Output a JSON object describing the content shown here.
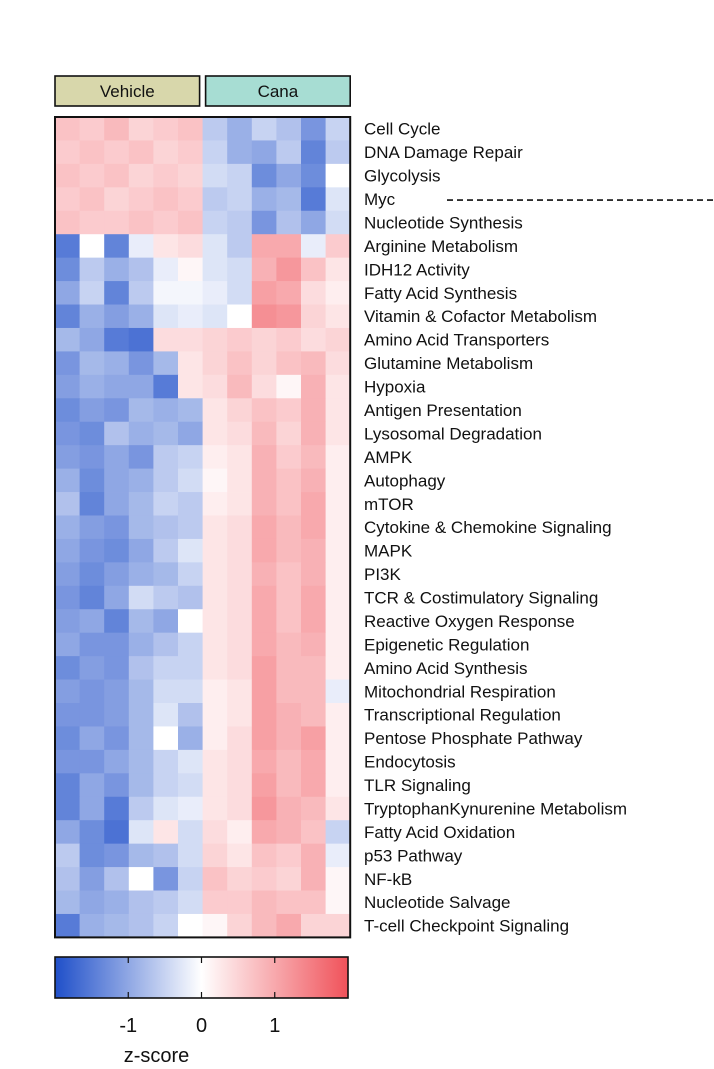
{
  "chart_data": {
    "type": "heatmap",
    "groups": [
      {
        "label": "Vehicle",
        "columns": 6,
        "color": "#d8d7ab"
      },
      {
        "label": "Cana",
        "columns": 6,
        "color": "#a7ddd3"
      }
    ],
    "rows": [
      "Cell Cycle",
      "DNA Damage Repair",
      "Glycolysis",
      "Myc",
      "Nucleotide Synthesis",
      "Arginine Metabolism",
      "IDH12 Activity",
      "Fatty Acid Synthesis",
      "Vitamin & Cofactor Metabolism",
      "Amino Acid Transporters",
      "Glutamine Metabolism",
      "Hypoxia",
      "Antigen Presentation",
      "Lysosomal Degradation",
      "AMPK",
      "Autophagy",
      "mTOR",
      "Cytokine & Chemokine Signaling",
      "MAPK",
      "PI3K",
      "TCR & Costimulatory Signaling",
      "Reactive Oxygen Response",
      "Epigenetic Regulation",
      "Amino Acid Synthesis",
      "Mitochondrial Respiration",
      "Transcriptional Regulation",
      "Pentose Phosphate Pathway",
      "Endocytosis",
      "TLR Signaling",
      "TryptophanKynurenine Metabolism",
      "Fatty Acid Oxidation",
      "p53 Pathway",
      "NF-kB",
      "Nucleotide Salvage",
      "T-cell Checkpoint Signaling"
    ],
    "values": [
      [
        0.7,
        0.6,
        0.8,
        0.5,
        0.6,
        0.7,
        -0.6,
        -0.9,
        -0.5,
        -0.7,
        -1.2,
        -0.5
      ],
      [
        0.6,
        0.7,
        0.6,
        0.7,
        0.5,
        0.6,
        -0.5,
        -0.9,
        -1.0,
        -0.6,
        -1.4,
        -0.6
      ],
      [
        0.7,
        0.6,
        0.7,
        0.5,
        0.6,
        0.5,
        -0.4,
        -0.5,
        -1.3,
        -1.0,
        -1.3,
        0.0
      ],
      [
        0.6,
        0.7,
        0.5,
        0.6,
        0.7,
        0.6,
        -0.6,
        -0.5,
        -0.9,
        -0.8,
        -1.5,
        -0.3
      ],
      [
        0.7,
        0.6,
        0.6,
        0.7,
        0.6,
        0.7,
        -0.5,
        -0.6,
        -1.2,
        -0.7,
        -1.0,
        -0.4
      ],
      [
        -1.5,
        0.0,
        -1.4,
        -0.2,
        0.3,
        0.4,
        -0.3,
        -0.6,
        1.0,
        1.0,
        -0.2,
        0.6
      ],
      [
        -1.3,
        -0.6,
        -0.9,
        -0.7,
        -0.2,
        0.1,
        -0.3,
        -0.4,
        0.9,
        1.2,
        0.7,
        0.3
      ],
      [
        -1.0,
        -0.5,
        -1.4,
        -0.6,
        -0.1,
        -0.1,
        -0.2,
        -0.4,
        1.1,
        1.0,
        0.4,
        0.2
      ],
      [
        -1.4,
        -0.9,
        -1.1,
        -0.9,
        -0.3,
        -0.2,
        -0.3,
        0.0,
        1.3,
        1.2,
        0.5,
        0.3
      ],
      [
        -0.8,
        -1.0,
        -1.5,
        -1.6,
        0.4,
        0.4,
        0.5,
        0.6,
        0.5,
        0.6,
        0.4,
        0.5
      ],
      [
        -1.2,
        -0.8,
        -0.9,
        -1.2,
        -0.8,
        0.3,
        0.5,
        0.7,
        0.5,
        0.7,
        0.8,
        0.4
      ],
      [
        -1.1,
        -0.9,
        -1.0,
        -1.0,
        -1.5,
        0.3,
        0.4,
        0.8,
        0.4,
        0.1,
        0.9,
        0.3
      ],
      [
        -1.3,
        -1.1,
        -1.2,
        -0.8,
        -0.9,
        -0.8,
        0.3,
        0.5,
        0.7,
        0.6,
        0.9,
        0.3
      ],
      [
        -1.2,
        -1.3,
        -0.7,
        -0.9,
        -0.8,
        -1.0,
        0.3,
        0.4,
        0.8,
        0.5,
        0.9,
        0.3
      ],
      [
        -1.1,
        -1.2,
        -1.0,
        -1.2,
        -0.6,
        -0.5,
        0.2,
        0.3,
        0.9,
        0.6,
        0.8,
        0.2
      ],
      [
        -0.9,
        -1.3,
        -1.0,
        -0.9,
        -0.6,
        -0.4,
        0.1,
        0.3,
        0.9,
        0.7,
        0.9,
        0.2
      ],
      [
        -0.7,
        -1.4,
        -1.0,
        -0.8,
        -0.5,
        -0.6,
        0.2,
        0.3,
        0.9,
        0.7,
        1.0,
        0.2
      ],
      [
        -0.9,
        -1.1,
        -1.2,
        -0.8,
        -0.7,
        -0.6,
        0.3,
        0.4,
        1.0,
        0.8,
        1.0,
        0.2
      ],
      [
        -1.0,
        -1.2,
        -1.3,
        -1.0,
        -0.6,
        -0.3,
        0.3,
        0.4,
        1.0,
        0.8,
        0.9,
        0.2
      ],
      [
        -1.1,
        -1.3,
        -1.1,
        -0.9,
        -0.8,
        -0.5,
        0.3,
        0.4,
        0.9,
        0.7,
        0.9,
        0.2
      ],
      [
        -1.2,
        -1.4,
        -1.0,
        -0.4,
        -0.6,
        -0.7,
        0.3,
        0.4,
        1.0,
        0.7,
        1.0,
        0.2
      ],
      [
        -1.1,
        -1.0,
        -1.4,
        -0.8,
        -1.0,
        0.0,
        0.3,
        0.4,
        1.0,
        0.7,
        1.0,
        0.2
      ],
      [
        -1.0,
        -1.2,
        -1.2,
        -0.9,
        -0.7,
        -0.5,
        0.3,
        0.4,
        1.0,
        0.8,
        0.9,
        0.2
      ],
      [
        -1.3,
        -1.1,
        -1.2,
        -0.7,
        -0.5,
        -0.5,
        0.3,
        0.4,
        1.1,
        0.8,
        0.8,
        0.2
      ],
      [
        -1.1,
        -1.2,
        -1.1,
        -0.8,
        -0.4,
        -0.4,
        0.2,
        0.3,
        1.1,
        0.8,
        0.8,
        -0.2
      ],
      [
        -1.2,
        -1.2,
        -1.1,
        -0.8,
        -0.3,
        -0.7,
        0.2,
        0.3,
        1.1,
        0.9,
        0.8,
        0.2
      ],
      [
        -1.3,
        -1.0,
        -1.2,
        -0.8,
        0.0,
        -0.9,
        0.2,
        0.4,
        1.1,
        0.9,
        1.1,
        0.2
      ],
      [
        -1.2,
        -1.2,
        -1.0,
        -0.8,
        -0.5,
        -0.3,
        0.3,
        0.4,
        1.0,
        0.8,
        1.0,
        0.2
      ],
      [
        -1.4,
        -1.0,
        -1.2,
        -0.8,
        -0.5,
        -0.4,
        0.3,
        0.4,
        1.1,
        0.8,
        1.0,
        0.2
      ],
      [
        -1.4,
        -1.0,
        -1.5,
        -0.6,
        -0.3,
        -0.2,
        0.3,
        0.4,
        1.2,
        0.9,
        0.8,
        0.3
      ],
      [
        -1.0,
        -1.3,
        -1.6,
        -0.3,
        0.3,
        -0.4,
        0.4,
        0.2,
        1.0,
        0.9,
        0.7,
        -0.5
      ],
      [
        -0.6,
        -1.3,
        -1.2,
        -0.8,
        -0.7,
        -0.4,
        0.5,
        0.3,
        0.7,
        0.6,
        0.9,
        -0.2
      ],
      [
        -0.7,
        -1.1,
        -0.7,
        0.0,
        -1.2,
        -0.5,
        0.7,
        0.5,
        0.6,
        0.5,
        0.9,
        0.1
      ],
      [
        -0.8,
        -1.0,
        -0.9,
        -0.7,
        -0.6,
        -0.4,
        0.6,
        0.6,
        0.8,
        0.7,
        0.7,
        0.1
      ],
      [
        -1.5,
        -0.9,
        -0.8,
        -0.7,
        -0.5,
        0.0,
        0.1,
        0.5,
        0.8,
        1.0,
        0.5,
        0.5
      ]
    ],
    "highlighted_row": "Myc",
    "color_scale": {
      "min": -2,
      "max": 2,
      "low_color": "#1f4fc9",
      "mid_color": "#ffffff",
      "high_color": "#f0525a",
      "ticks": [
        -1,
        0,
        1
      ],
      "label": "z-score"
    }
  }
}
